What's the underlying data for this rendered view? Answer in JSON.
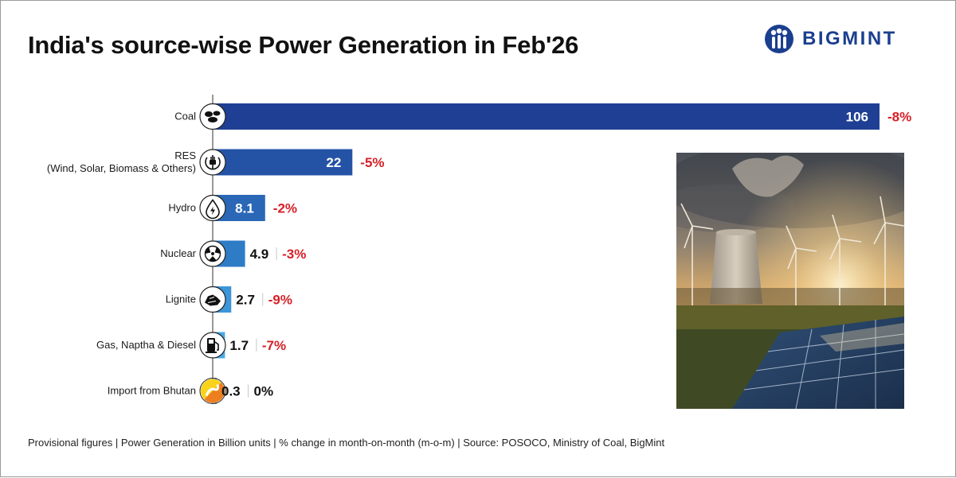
{
  "header": {
    "title": "India's source-wise Power Generation in Feb'26",
    "brand": "BIGMINT"
  },
  "footer": {
    "note": "Provisional figures | Power Generation in Billion units | % change in month-on-month (m-o-m) | Source: POSOCO, Ministry of Coal, BigMint"
  },
  "colors": {
    "neg_change": "#d61f26",
    "zero_change": "#111111",
    "brand": "#1b3f8f"
  },
  "chart_data": {
    "type": "bar",
    "orientation": "horizontal",
    "title": "India's source-wise Power Generation in Feb'26",
    "unit": "Billion units",
    "xlim": [
      0,
      106
    ],
    "categories": [
      "Coal",
      "RES\n(Wind, Solar, Biomass & Others)",
      "Hydro",
      "Nuclear",
      "Lignite",
      "Gas, Naptha & Diesel",
      "Import from Bhutan"
    ],
    "values": [
      106,
      22,
      8.1,
      4.9,
      2.7,
      1.7,
      0.3
    ],
    "value_labels": [
      "106",
      "22",
      "8.1",
      "4.9",
      "2.7",
      "1.7",
      "0.3"
    ],
    "changes": [
      "-8%",
      "-5%",
      "-2%",
      "-3%",
      "-9%",
      "-7%",
      "0%"
    ],
    "bar_colors": [
      "#1f3f94",
      "#2453a6",
      "#2a67b6",
      "#2f7cc6",
      "#3b95d9",
      "#4aa8e5",
      "#5ab3eb"
    ],
    "icons": [
      "coal-icon",
      "res-plug-icon",
      "hydro-drop-icon",
      "nuclear-icon",
      "lignite-icon",
      "fuel-pump-icon",
      "bhutan-flag-icon"
    ]
  }
}
